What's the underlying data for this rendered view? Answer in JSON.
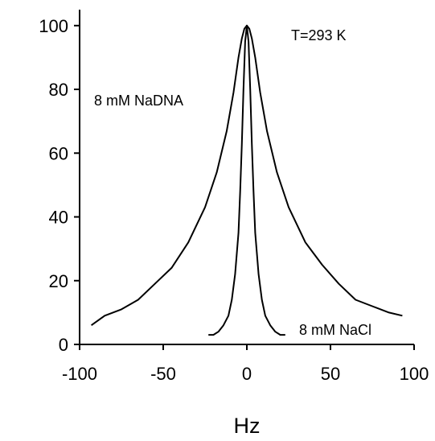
{
  "chart_data": {
    "type": "line",
    "title": "",
    "xlabel": "Hz",
    "ylabel": "",
    "xlim": [
      -100,
      100
    ],
    "ylim": [
      0,
      105
    ],
    "xticks": [
      -100,
      -50,
      0,
      50,
      100
    ],
    "yticks": [
      0,
      20,
      40,
      60,
      80,
      100
    ],
    "grid": false,
    "annotations": {
      "temperature": "T=293 K",
      "nadna": "8 mM NaDNA",
      "nacl": "8 mM NaCl"
    },
    "series": [
      {
        "x": [
          -93,
          -85,
          -75,
          -65,
          -55,
          -45,
          -35,
          -25,
          -18,
          -12,
          -8,
          -5,
          -3,
          -1.5,
          0,
          1.5,
          3,
          5,
          8,
          12,
          18,
          25,
          35,
          45,
          55,
          65,
          75,
          85,
          93
        ],
        "y": [
          6,
          9,
          11,
          14,
          19,
          24,
          32,
          43,
          54,
          67,
          79,
          90,
          96,
          99,
          100,
          99,
          96,
          90,
          79,
          67,
          54,
          43,
          32,
          25,
          19,
          14,
          12,
          10,
          9
        ]
      },
      {
        "x": [
          -23,
          -20,
          -17,
          -14,
          -11,
          -9,
          -7,
          -5,
          -4,
          -3,
          -2,
          -1,
          0,
          1,
          2,
          3,
          4,
          5,
          7,
          9,
          11,
          14,
          17,
          20,
          23
        ],
        "y": [
          3,
          3,
          4,
          6,
          9,
          14,
          22,
          35,
          48,
          63,
          80,
          95,
          100,
          95,
          80,
          63,
          48,
          35,
          22,
          14,
          9,
          6,
          4,
          3,
          3
        ]
      }
    ]
  }
}
